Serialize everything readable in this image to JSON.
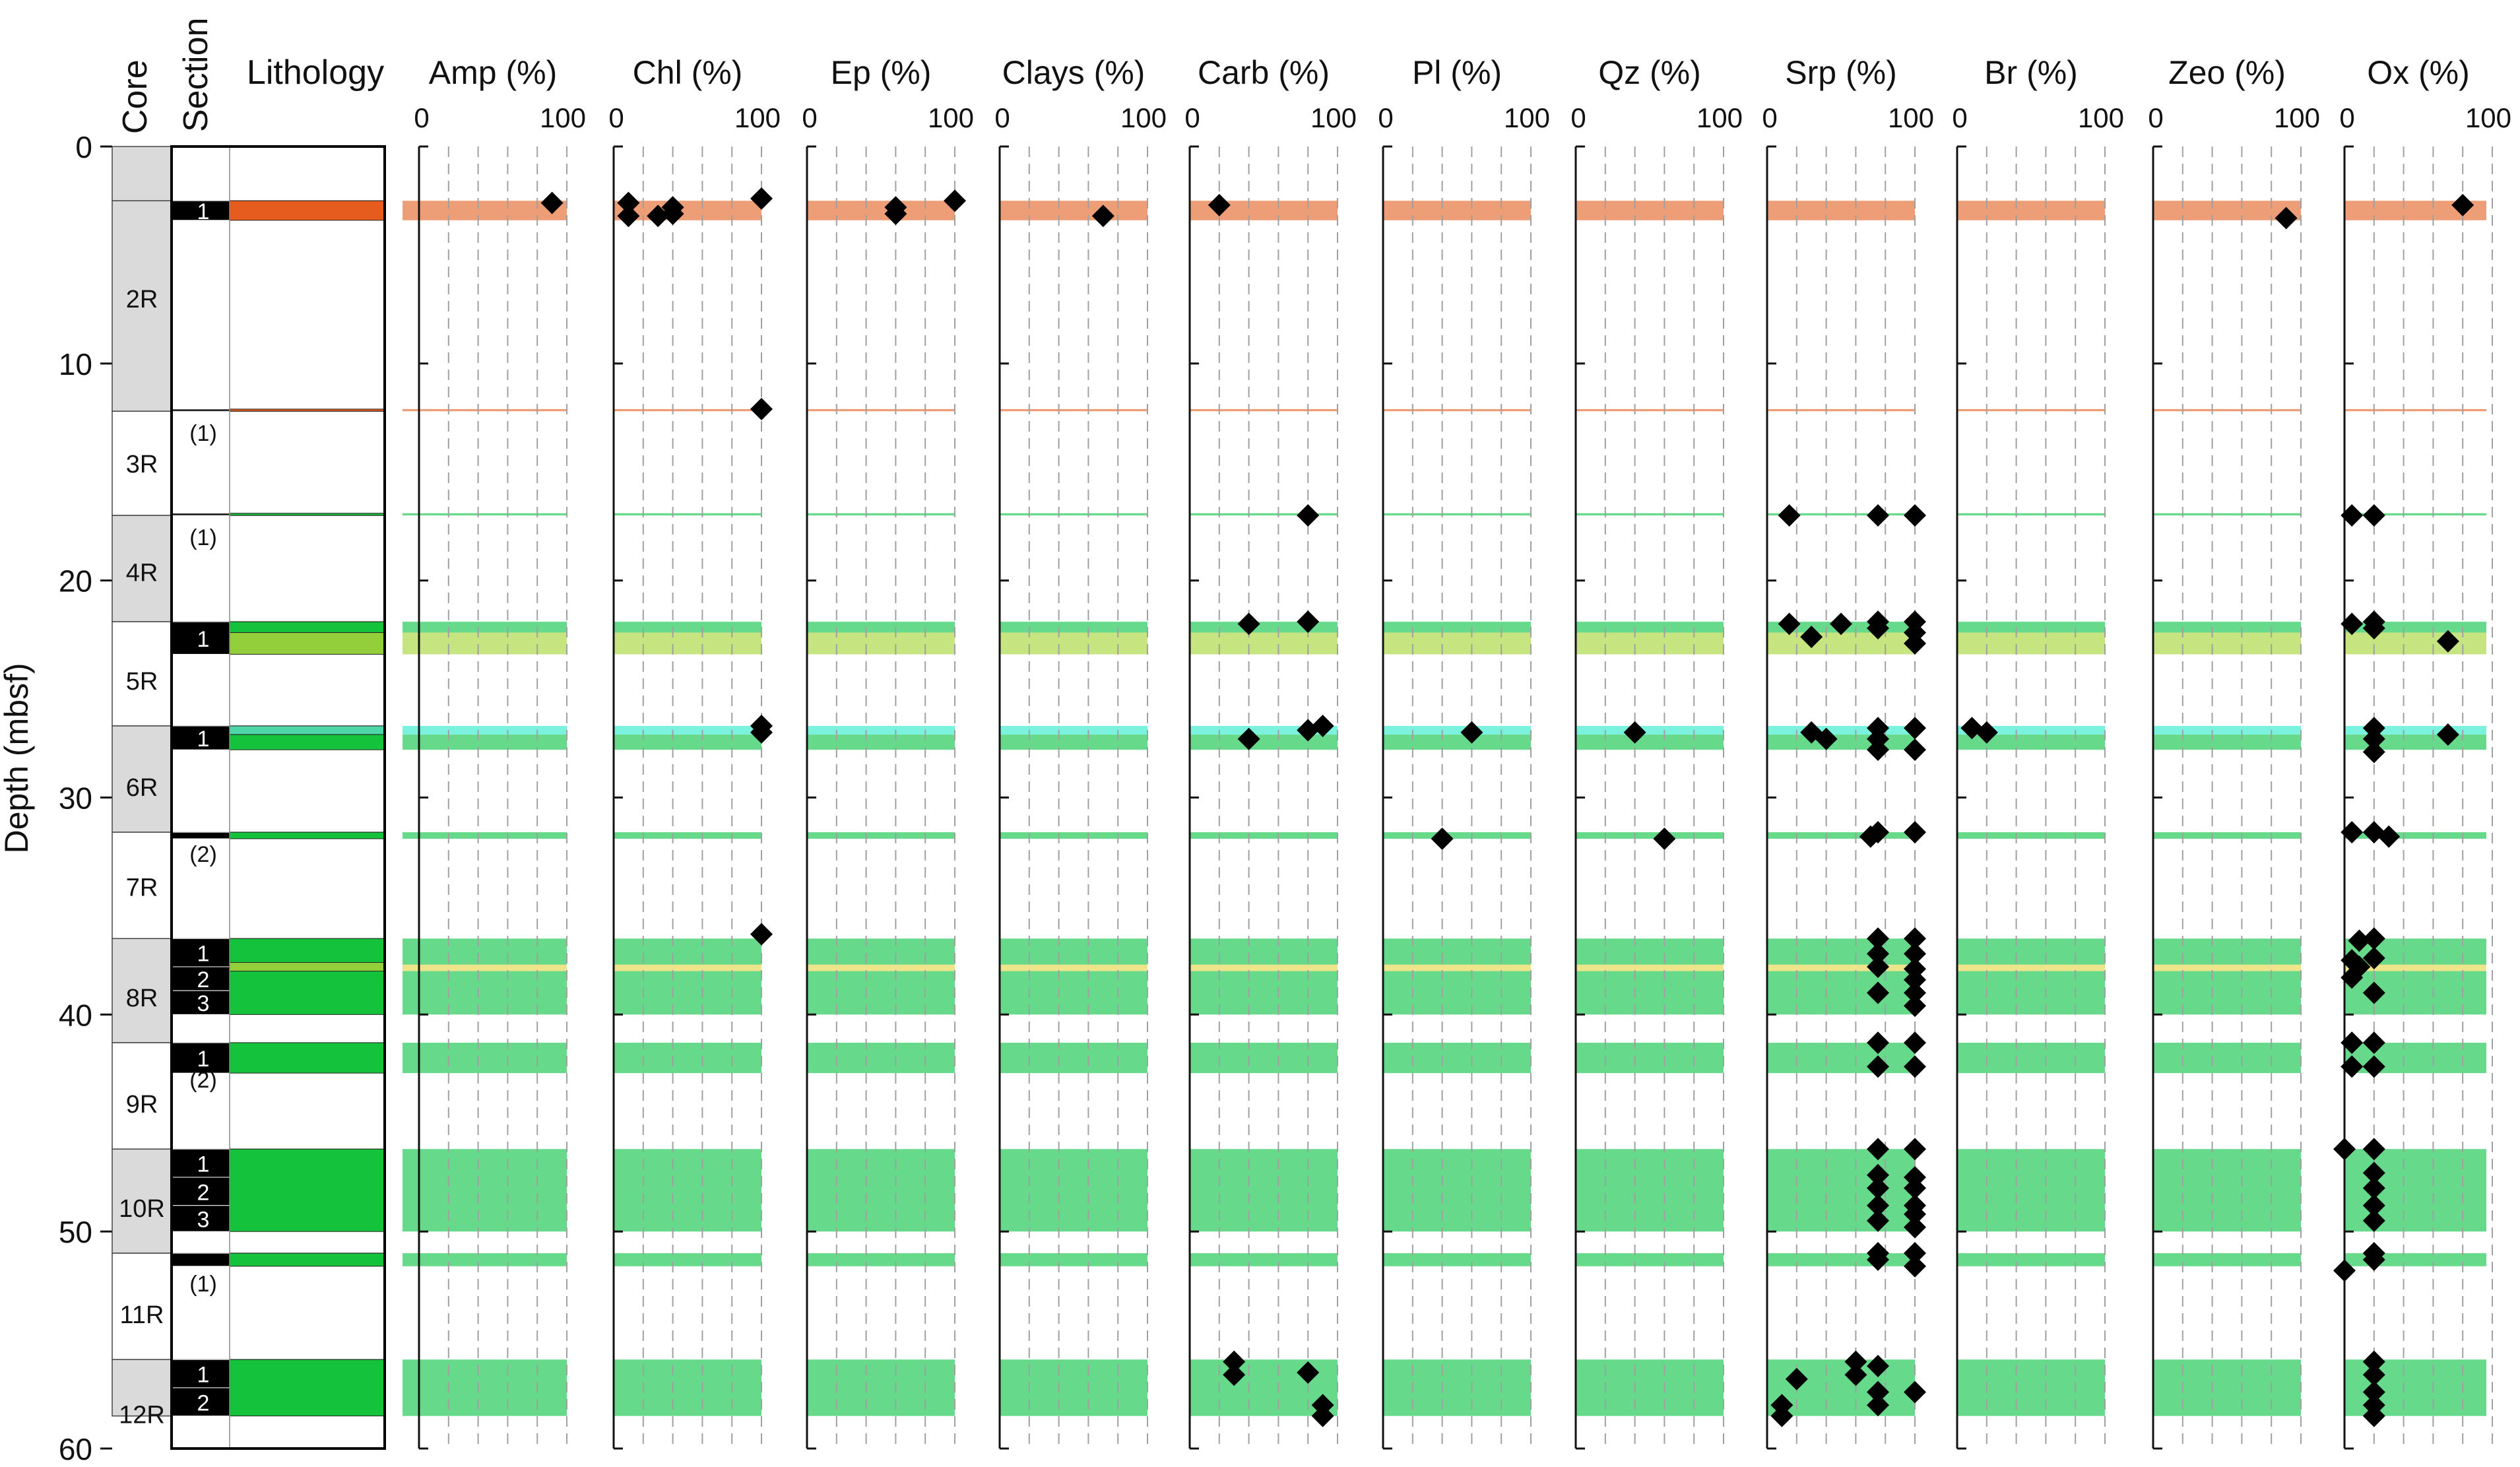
{
  "figure": {
    "depth_axis": {
      "label": "Depth (mbsf)",
      "min": 0,
      "max": 60,
      "ticks": [
        0,
        10,
        20,
        30,
        40,
        50,
        60
      ]
    },
    "column_headers": {
      "core": "Core",
      "section": "Section",
      "lithology": "Lithology"
    },
    "mineral_axis": {
      "min": 0,
      "max": 100,
      "tick_labels": [
        "0",
        "100"
      ],
      "gridlines": [
        20,
        40,
        60,
        80,
        100
      ]
    },
    "zone_colors": {
      "orange": "#ee9e76",
      "green": "#66d98a",
      "yellowgreen": "#c6e47f",
      "cyan": "#7af2de",
      "yellow": "#eee48c"
    },
    "litho_colors": {
      "orange": "#e65c1e",
      "green": "#14c23c",
      "yellowgreen": "#92cf3a",
      "cyan": "#4fd6a8"
    },
    "cores": [
      {
        "label": "2R",
        "top": 2.5,
        "bottom": 12.2,
        "label_depth": 7
      },
      {
        "label": "3R",
        "top": 12.2,
        "bottom": 17.0,
        "label_depth": 14.6
      },
      {
        "label": "4R",
        "top": 17.0,
        "bottom": 21.9,
        "label_depth": 19.6
      },
      {
        "label": "5R",
        "top": 21.9,
        "bottom": 26.7,
        "label_depth": 24.6
      },
      {
        "label": "6R",
        "top": 26.7,
        "bottom": 31.6,
        "label_depth": 29.5
      },
      {
        "label": "7R",
        "top": 31.6,
        "bottom": 36.5,
        "label_depth": 34.1
      },
      {
        "label": "8R",
        "top": 36.5,
        "bottom": 41.3,
        "label_depth": 39.2
      },
      {
        "label": "9R",
        "top": 41.3,
        "bottom": 46.2,
        "label_depth": 44.1
      },
      {
        "label": "10R",
        "top": 46.2,
        "bottom": 51.0,
        "label_depth": 48.9
      },
      {
        "label": "11R",
        "top": 51.0,
        "bottom": 55.9,
        "label_depth": 53.8
      },
      {
        "label": "12R",
        "top": 55.9,
        "bottom": 58.5,
        "label_depth": 58.4
      }
    ],
    "sections": [
      {
        "label": "1",
        "top": 2.5,
        "bottom": 3.4
      },
      {
        "label": "",
        "top": 12.1,
        "bottom": 12.2
      },
      {
        "label": "",
        "top": 16.9,
        "bottom": 17.0
      },
      {
        "label": "1",
        "top": 21.9,
        "bottom": 23.4
      },
      {
        "label": "1",
        "top": 26.7,
        "bottom": 27.8
      },
      {
        "label": "",
        "top": 31.6,
        "bottom": 31.9
      },
      {
        "label": "1",
        "top": 36.5,
        "bottom": 37.8
      },
      {
        "label": "2",
        "top": 37.8,
        "bottom": 38.9
      },
      {
        "label": "3",
        "top": 38.9,
        "bottom": 40.0
      },
      {
        "label": "1",
        "top": 41.3,
        "bottom": 42.7
      },
      {
        "label": "1",
        "top": 46.2,
        "bottom": 47.5
      },
      {
        "label": "2",
        "top": 47.5,
        "bottom": 48.8
      },
      {
        "label": "3",
        "top": 48.8,
        "bottom": 50.0
      },
      {
        "label": "",
        "top": 51.0,
        "bottom": 51.6
      },
      {
        "label": "1",
        "top": 55.9,
        "bottom": 57.2
      },
      {
        "label": "2",
        "top": 57.2,
        "bottom": 58.5
      }
    ],
    "empty_section_labels": [
      {
        "label": "(1)",
        "depth": 13.2
      },
      {
        "label": "(1)",
        "depth": 18.0
      },
      {
        "label": "(2)",
        "depth": 32.6
      },
      {
        "label": "(2)",
        "depth": 43.0
      },
      {
        "label": "(1)",
        "depth": 52.4
      }
    ],
    "lithology": [
      {
        "top": 2.5,
        "bottom": 3.4,
        "color": "orange"
      },
      {
        "top": 12.1,
        "bottom": 12.2,
        "color": "orange"
      },
      {
        "top": 16.9,
        "bottom": 17.0,
        "color": "green"
      },
      {
        "top": 21.9,
        "bottom": 22.4,
        "color": "green"
      },
      {
        "top": 22.4,
        "bottom": 23.4,
        "color": "yellowgreen"
      },
      {
        "top": 26.7,
        "bottom": 27.1,
        "color": "cyan"
      },
      {
        "top": 27.1,
        "bottom": 27.8,
        "color": "green"
      },
      {
        "top": 31.6,
        "bottom": 31.9,
        "color": "green"
      },
      {
        "top": 36.5,
        "bottom": 40.0,
        "color": "green"
      },
      {
        "top": 37.6,
        "bottom": 38.0,
        "color": "yellowgreen"
      },
      {
        "top": 41.3,
        "bottom": 42.7,
        "color": "green"
      },
      {
        "top": 46.2,
        "bottom": 50.0,
        "color": "green"
      },
      {
        "top": 51.0,
        "bottom": 51.6,
        "color": "green"
      },
      {
        "top": 55.9,
        "bottom": 58.5,
        "color": "green"
      }
    ],
    "zones": [
      {
        "top": 2.5,
        "bottom": 3.4,
        "color": "orange"
      },
      {
        "top": 12.1,
        "bottom": 12.2,
        "color": "orange"
      },
      {
        "top": 16.9,
        "bottom": 17.0,
        "color": "green"
      },
      {
        "top": 21.9,
        "bottom": 22.4,
        "color": "green"
      },
      {
        "top": 22.4,
        "bottom": 23.4,
        "color": "yellowgreen"
      },
      {
        "top": 26.7,
        "bottom": 27.1,
        "color": "cyan"
      },
      {
        "top": 27.1,
        "bottom": 27.8,
        "color": "green"
      },
      {
        "top": 31.6,
        "bottom": 31.9,
        "color": "green"
      },
      {
        "top": 36.5,
        "bottom": 40.0,
        "color": "green"
      },
      {
        "top": 37.7,
        "bottom": 38.0,
        "color": "yellow"
      },
      {
        "top": 41.3,
        "bottom": 42.7,
        "color": "green"
      },
      {
        "top": 46.2,
        "bottom": 50.0,
        "color": "green"
      },
      {
        "top": 51.0,
        "bottom": 51.6,
        "color": "green"
      },
      {
        "top": 55.9,
        "bottom": 58.5,
        "color": "green"
      }
    ]
  },
  "chart_data": {
    "type": "scatter",
    "x_unit": "%",
    "y_unit": "mbsf",
    "ylim": [
      0,
      60
    ],
    "xlim": [
      0,
      100
    ],
    "panels": [
      {
        "name": "Amp (%)",
        "points": [
          [
            90,
            2.6
          ]
        ]
      },
      {
        "name": "Chl (%)",
        "points": [
          [
            10,
            2.6
          ],
          [
            10,
            3.2
          ],
          [
            30,
            3.2
          ],
          [
            40,
            2.8
          ],
          [
            40,
            3.1
          ],
          [
            100,
            2.4
          ],
          [
            100,
            12.1
          ],
          [
            100,
            26.7
          ],
          [
            100,
            27.0
          ],
          [
            100,
            36.3
          ]
        ]
      },
      {
        "name": "Ep (%)",
        "points": [
          [
            60,
            2.8
          ],
          [
            60,
            3.1
          ],
          [
            100,
            2.5
          ]
        ]
      },
      {
        "name": "Clays (%)",
        "points": [
          [
            70,
            3.2
          ]
        ]
      },
      {
        "name": "Carb (%)",
        "points": [
          [
            20,
            2.7
          ],
          [
            40,
            22.0
          ],
          [
            80,
            17.0
          ],
          [
            80,
            21.9
          ],
          [
            80,
            26.9
          ],
          [
            90,
            26.7
          ],
          [
            40,
            27.3
          ],
          [
            30,
            56.0
          ],
          [
            30,
            56.6
          ],
          [
            80,
            56.5
          ],
          [
            90,
            58.0
          ],
          [
            90,
            58.5
          ]
        ]
      },
      {
        "name": "Pl (%)",
        "points": [
          [
            60,
            27.0
          ],
          [
            40,
            31.9
          ]
        ]
      },
      {
        "name": "Qz (%)",
        "points": [
          [
            40,
            27.0
          ],
          [
            60,
            31.9
          ]
        ]
      },
      {
        "name": "Srp (%)",
        "points": [
          [
            15,
            17.0
          ],
          [
            75,
            17.0
          ],
          [
            100,
            17.0
          ],
          [
            15,
            22.0
          ],
          [
            30,
            22.6
          ],
          [
            50,
            22.0
          ],
          [
            75,
            21.9
          ],
          [
            75,
            22.2
          ],
          [
            100,
            21.9
          ],
          [
            100,
            22.4
          ],
          [
            100,
            22.9
          ],
          [
            30,
            27.0
          ],
          [
            40,
            27.3
          ],
          [
            75,
            26.8
          ],
          [
            75,
            27.3
          ],
          [
            75,
            27.8
          ],
          [
            100,
            26.8
          ],
          [
            100,
            27.8
          ],
          [
            70,
            31.8
          ],
          [
            75,
            31.6
          ],
          [
            100,
            31.6
          ],
          [
            75,
            36.5
          ],
          [
            75,
            37.2
          ],
          [
            75,
            37.8
          ],
          [
            75,
            39.0
          ],
          [
            100,
            36.5
          ],
          [
            100,
            37.2
          ],
          [
            100,
            37.9
          ],
          [
            100,
            38.4
          ],
          [
            100,
            39.0
          ],
          [
            100,
            39.6
          ],
          [
            75,
            41.3
          ],
          [
            75,
            42.4
          ],
          [
            100,
            41.3
          ],
          [
            100,
            42.4
          ],
          [
            75,
            46.2
          ],
          [
            75,
            47.4
          ],
          [
            75,
            48.0
          ],
          [
            75,
            48.8
          ],
          [
            75,
            49.5
          ],
          [
            100,
            46.2
          ],
          [
            100,
            47.5
          ],
          [
            100,
            48.0
          ],
          [
            100,
            48.8
          ],
          [
            100,
            49.2
          ],
          [
            100,
            49.8
          ],
          [
            75,
            51.0
          ],
          [
            75,
            51.3
          ],
          [
            100,
            51.0
          ],
          [
            100,
            51.6
          ],
          [
            60,
            56.0
          ],
          [
            60,
            56.6
          ],
          [
            75,
            56.2
          ],
          [
            75,
            57.4
          ],
          [
            75,
            58.0
          ],
          [
            100,
            57.4
          ],
          [
            20,
            56.8
          ],
          [
            10,
            58.0
          ],
          [
            10,
            58.5
          ]
        ]
      },
      {
        "name": "Br (%)",
        "points": [
          [
            10,
            26.8
          ],
          [
            20,
            27.0
          ]
        ]
      },
      {
        "name": "Zeo (%)",
        "points": [
          [
            90,
            3.3
          ]
        ]
      },
      {
        "name": "Ox (%)",
        "points": [
          [
            80,
            2.7
          ],
          [
            5,
            17.0
          ],
          [
            20,
            17.0
          ],
          [
            5,
            22.0
          ],
          [
            20,
            21.9
          ],
          [
            20,
            22.2
          ],
          [
            70,
            22.8
          ],
          [
            20,
            26.8
          ],
          [
            20,
            27.3
          ],
          [
            20,
            27.9
          ],
          [
            70,
            27.1
          ],
          [
            5,
            31.6
          ],
          [
            20,
            31.6
          ],
          [
            30,
            31.8
          ],
          [
            10,
            36.6
          ],
          [
            20,
            36.5
          ],
          [
            20,
            37.4
          ],
          [
            5,
            37.5
          ],
          [
            5,
            38.3
          ],
          [
            10,
            37.8
          ],
          [
            20,
            39.0
          ],
          [
            5,
            41.3
          ],
          [
            5,
            42.4
          ],
          [
            20,
            41.3
          ],
          [
            20,
            42.4
          ],
          [
            0,
            46.2
          ],
          [
            20,
            46.2
          ],
          [
            20,
            47.3
          ],
          [
            20,
            48.0
          ],
          [
            20,
            48.8
          ],
          [
            20,
            49.5
          ],
          [
            0,
            51.8
          ],
          [
            20,
            51.0
          ],
          [
            20,
            51.3
          ],
          [
            20,
            56.0
          ],
          [
            20,
            56.6
          ],
          [
            20,
            57.4
          ],
          [
            20,
            58.0
          ],
          [
            20,
            58.5
          ]
        ]
      }
    ]
  }
}
